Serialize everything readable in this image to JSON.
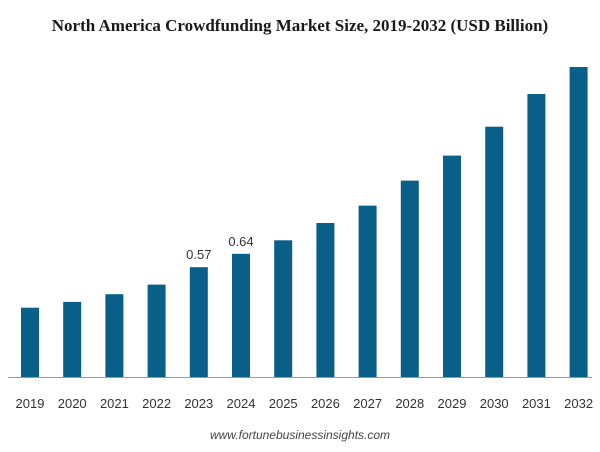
{
  "title": "North America Crowdfunding Market Size, 2019-2032 (USD Billion)",
  "source": "www.fortunebusinessinsights.com",
  "colors": {
    "bar": "#0a5f88",
    "axis": "#9a9a9a",
    "text": "#333333"
  },
  "chart_data": {
    "type": "bar",
    "title": "North America Crowdfunding Market Size, 2019-2032 (USD Billion)",
    "categories": [
      "2019",
      "2020",
      "2021",
      "2022",
      "2023",
      "2024",
      "2025",
      "2026",
      "2027",
      "2028",
      "2029",
      "2030",
      "2031",
      "2032"
    ],
    "values": [
      0.36,
      0.39,
      0.43,
      0.48,
      0.57,
      0.64,
      0.71,
      0.8,
      0.89,
      1.02,
      1.15,
      1.3,
      1.47,
      1.61
    ],
    "data_labels": [
      null,
      null,
      null,
      null,
      "0.57",
      "0.64",
      null,
      null,
      null,
      null,
      null,
      null,
      null,
      null
    ],
    "ylim": [
      0,
      1.61
    ],
    "grid": false,
    "legend": "none"
  }
}
